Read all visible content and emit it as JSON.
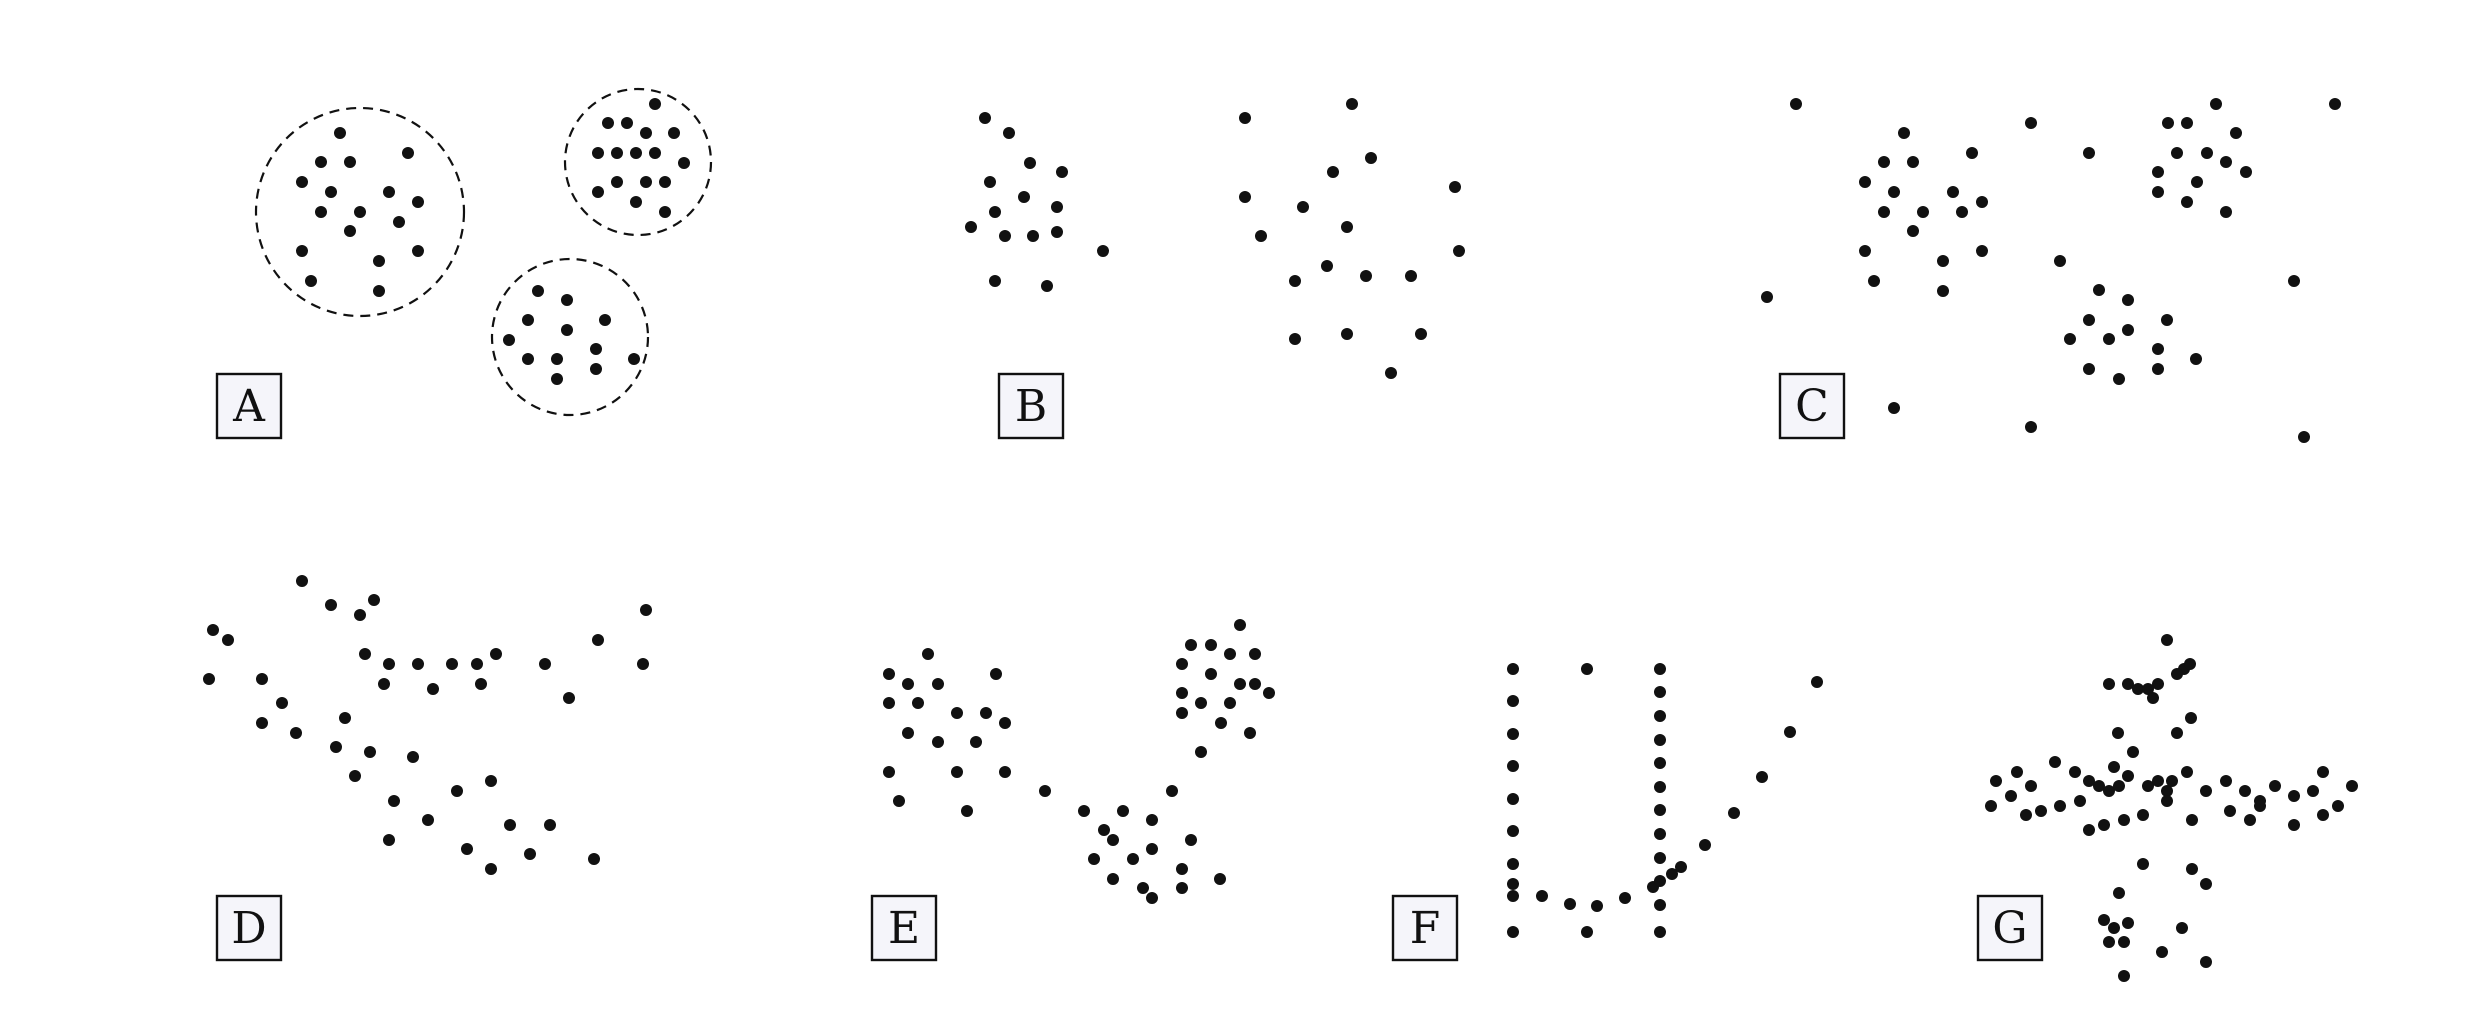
{
  "panels": [
    {
      "id": "A",
      "label": "A"
    },
    {
      "id": "B",
      "label": "B"
    },
    {
      "id": "C",
      "label": "C"
    },
    {
      "id": "D",
      "label": "D"
    },
    {
      "id": "E",
      "label": "E"
    },
    {
      "id": "F",
      "label": "F"
    },
    {
      "id": "G",
      "label": "G"
    }
  ]
}
